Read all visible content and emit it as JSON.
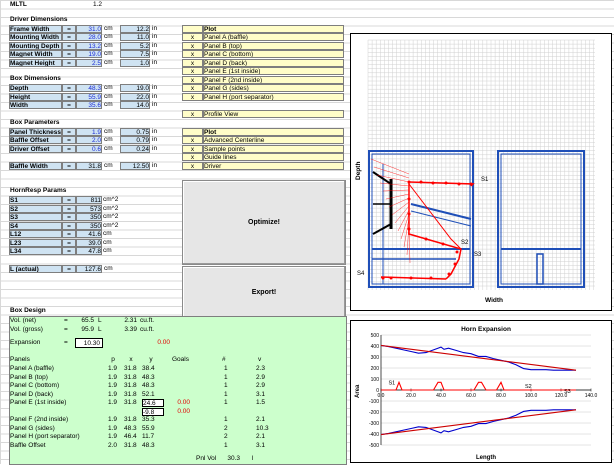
{
  "header": {
    "mltl_label": "MLTL",
    "mltl_value": "1.2"
  },
  "driver": {
    "title": "Driver Dimensions",
    "rows": [
      {
        "label": "Frame Width",
        "cm": "31.0",
        "in": "12.2"
      },
      {
        "label": "Mounting Width",
        "cm": "28.0",
        "in": "11.0"
      },
      {
        "label": "Mounting Depth",
        "cm": "13.2",
        "in": "5.2"
      },
      {
        "label": "Magnet Width",
        "cm": "19.0",
        "in": "7.5"
      },
      {
        "label": "Magnet Height",
        "cm": "2.5",
        "in": "1.0"
      }
    ]
  },
  "box_dims": {
    "title": "Box Dimensions",
    "rows": [
      {
        "label": "Depth",
        "cm": "48.3",
        "in": "19.0"
      },
      {
        "label": "Height",
        "cm": "55.9",
        "in": "22.0"
      },
      {
        "label": "Width",
        "cm": "35.6",
        "in": "14.0"
      }
    ]
  },
  "box_params": {
    "title": "Box Parameters",
    "rows": [
      {
        "label": "Panel Thickness",
        "cm": "1.9",
        "in": "0.75"
      },
      {
        "label": "Baffle Offset",
        "cm": "2.0",
        "in": "0.79"
      },
      {
        "label": "Driver Offset",
        "cm": "0.6",
        "in": "0.24"
      }
    ],
    "baffle_width": {
      "label": "Baffle Width",
      "cm": "31.8",
      "in": "12.50"
    }
  },
  "hornresp": {
    "title": "HornResp Params",
    "rows": [
      {
        "label": "S1",
        "value": "811",
        "unit": "cm^2"
      },
      {
        "label": "S2",
        "value": "573",
        "unit": "cm^2"
      },
      {
        "label": "S3",
        "value": "350",
        "unit": "cm^2"
      },
      {
        "label": "S4",
        "value": "350",
        "unit": "cm^2"
      },
      {
        "label": "L12",
        "value": "41.6",
        "unit": "cm"
      },
      {
        "label": "L23",
        "value": "39.0",
        "unit": "cm"
      },
      {
        "label": "L34",
        "value": "47.8",
        "unit": "cm"
      }
    ],
    "l_actual": {
      "label": "L (actual)",
      "value": "127.6",
      "unit": "cm"
    }
  },
  "units": {
    "cm": "cm",
    "in": "in",
    "eq": "="
  },
  "plot_options": {
    "title": "Plot",
    "items": [
      {
        "mark": "x",
        "label": "Panel A (baffle)"
      },
      {
        "mark": "x",
        "label": "Panel B (top)"
      },
      {
        "mark": "x",
        "label": "Panel C (bottom)"
      },
      {
        "mark": "x",
        "label": "Panel D (back)"
      },
      {
        "mark": "x",
        "label": "Panel E (1st inside)"
      },
      {
        "mark": "x",
        "label": "Panel F (2nd inside)"
      },
      {
        "mark": "x",
        "label": "Panel G (sides)"
      },
      {
        "mark": "x",
        "label": "Panel H (port separator)"
      }
    ],
    "profile": {
      "mark": "x",
      "label": "Profile View"
    }
  },
  "plot_options2": {
    "title": "Plot",
    "items": [
      {
        "mark": "x",
        "label": "Advanced Centerline"
      },
      {
        "mark": "x",
        "label": "Sample points"
      },
      {
        "mark": "x",
        "label": "Guide lines"
      },
      {
        "mark": "x",
        "label": "Driver"
      }
    ]
  },
  "buttons": {
    "optimize": "Optimize!",
    "export": "Export!"
  },
  "box_design": {
    "title": "Box Design",
    "vol_net": {
      "label": "Vol. (net)",
      "eq": "=",
      "value": "65.5",
      "unit": "L",
      "value2": "2.31",
      "unit2": "cu.ft."
    },
    "vol_gross": {
      "label": "Vol. (gross)",
      "eq": "=",
      "value": "95.9",
      "unit": "L",
      "value2": "3.39",
      "unit2": "cu.ft."
    },
    "expansion": {
      "label": "Expansion",
      "eq": "=",
      "value": "10.30",
      "result": "0.00"
    },
    "headers": {
      "panels": "Panels",
      "p": "p",
      "x": "x",
      "y": "y",
      "goals": "Goals",
      "num": "#",
      "v": "v"
    },
    "panels": [
      {
        "name": "Panel A (baffle)",
        "p": "1.9",
        "x": "31.8",
        "y": "38.4",
        "goal": "",
        "num": "1",
        "v": "2.3"
      },
      {
        "name": "Panel B (top)",
        "p": "1.9",
        "x": "31.8",
        "y": "48.3",
        "goal": "",
        "num": "1",
        "v": "2.9"
      },
      {
        "name": "Panel C (bottom)",
        "p": "1.9",
        "x": "31.8",
        "y": "48.3",
        "goal": "",
        "num": "1",
        "v": "2.9"
      },
      {
        "name": "Panel D (back)",
        "p": "1.9",
        "x": "31.8",
        "y": "52.1",
        "goal": "",
        "num": "1",
        "v": "3.1"
      },
      {
        "name": "Panel E (1st inside)",
        "p": "1.9",
        "x": "31.8",
        "y": "24.6",
        "goal": "0.00",
        "num": "1",
        "v": "1.5"
      },
      {
        "name": "",
        "p": "",
        "x": "",
        "y": "-9.8",
        "goal": "0.00",
        "num": "",
        "v": ""
      },
      {
        "name": "Panel F (2nd inside)",
        "p": "1.9",
        "x": "31.8",
        "y": "35.3",
        "goal": "",
        "num": "1",
        "v": "2.1"
      },
      {
        "name": "Panel G (sides)",
        "p": "1.9",
        "x": "48.3",
        "y": "55.9",
        "goal": "",
        "num": "2",
        "v": "10.3"
      },
      {
        "name": "Panel H (port separator)",
        "p": "1.9",
        "x": "46.4",
        "y": "11.7",
        "goal": "",
        "num": "2",
        "v": "2.1"
      },
      {
        "name": "Baffle Offset",
        "p": "2.0",
        "x": "31.8",
        "y": "48.3",
        "goal": "",
        "num": "1",
        "v": "3.1"
      }
    ],
    "pnl_vol": {
      "label": "Pnl Vol",
      "value": "30.3",
      "unit": "l"
    }
  },
  "profile_plot": {
    "xlabel": "Width",
    "ylabel": "Depth",
    "labels": [
      "S1",
      "S2",
      "S3",
      "S4"
    ]
  },
  "chart_data": {
    "type": "line",
    "title": "Horn Expansion",
    "xlabel": "Length",
    "ylabel": "Area",
    "xlim": [
      0,
      140
    ],
    "ylim": [
      -500,
      500
    ],
    "x_ticks": [
      "0.0",
      "20.0",
      "40.0",
      "60.0",
      "80.0",
      "100.0",
      "120.0",
      "140.0"
    ],
    "y_ticks": [
      "500",
      "400",
      "300",
      "200",
      "100",
      "0",
      "-100",
      "-200",
      "-300",
      "-400",
      "-500"
    ],
    "annotations": [
      "S1",
      "S2",
      "S3"
    ],
    "series": [
      {
        "color": "#0000cc",
        "x": [
          0,
          5,
          10,
          15,
          20,
          25,
          30,
          35,
          40,
          42,
          45,
          50,
          55,
          60,
          65,
          70,
          75,
          80,
          85,
          90,
          95,
          100,
          105,
          110,
          115,
          120,
          125,
          130
        ],
        "y": [
          405,
          395,
          380,
          365,
          350,
          335,
          340,
          365,
          390,
          370,
          380,
          360,
          340,
          330,
          305,
          305,
          285,
          270,
          255,
          230,
          195,
          185,
          185,
          185,
          180,
          180,
          180,
          180
        ]
      },
      {
        "color": "#cc0000",
        "x": [
          0,
          130
        ],
        "y": [
          405,
          180
        ]
      },
      {
        "color": "#ff0000",
        "x": [
          0,
          5,
          10,
          12,
          14,
          20,
          22,
          25,
          27,
          30,
          35,
          38,
          40,
          42,
          45,
          50,
          55,
          60,
          62,
          65,
          67,
          70,
          72,
          75,
          77,
          80,
          82,
          85,
          87,
          90,
          100,
          110,
          120,
          130
        ],
        "y": [
          0,
          0,
          0,
          70,
          0,
          0,
          0,
          0,
          0,
          0,
          0,
          70,
          70,
          0,
          0,
          0,
          0,
          0,
          0,
          70,
          70,
          0,
          0,
          0,
          0,
          70,
          0,
          0,
          0,
          0,
          0,
          0,
          0,
          0
        ]
      }
    ],
    "series_mirror": true
  }
}
